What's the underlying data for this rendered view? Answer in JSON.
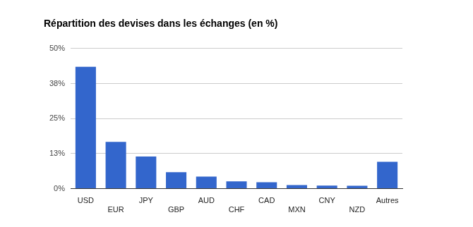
{
  "chart_data": {
    "type": "bar",
    "title": "Répartition des devises dans les échanges (en %)",
    "categories": [
      "USD",
      "EUR",
      "JPY",
      "GBP",
      "AUD",
      "CHF",
      "CAD",
      "MXN",
      "CNY",
      "NZD",
      "Autres"
    ],
    "values": [
      43.5,
      16.7,
      11.5,
      5.9,
      4.3,
      2.6,
      2.3,
      1.3,
      1.1,
      1.0,
      9.6
    ],
    "color": "#3366cc",
    "ylim": [
      0,
      50
    ],
    "yticks": [
      {
        "value": 0,
        "label": "0%"
      },
      {
        "value": 12.5,
        "label": "13%"
      },
      {
        "value": 25,
        "label": "25%"
      },
      {
        "value": 37.5,
        "label": "38%"
      },
      {
        "value": 50,
        "label": "50%"
      }
    ],
    "grid": true
  }
}
